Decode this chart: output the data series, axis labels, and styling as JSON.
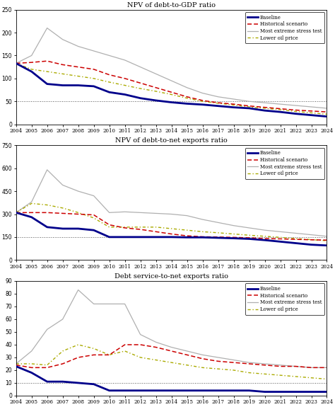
{
  "years": [
    2004,
    2005,
    2006,
    2007,
    2008,
    2009,
    2010,
    2011,
    2012,
    2013,
    2014,
    2015,
    2016,
    2017,
    2018,
    2019,
    2020,
    2021,
    2022,
    2023,
    2024
  ],
  "chart1": {
    "title": "NPV of debt-to-GDP ratio",
    "ylim": [
      0,
      250
    ],
    "yticks": [
      0,
      50,
      100,
      150,
      200,
      250
    ],
    "threshold": 50,
    "baseline": [
      133,
      115,
      88,
      85,
      85,
      83,
      70,
      65,
      57,
      52,
      48,
      45,
      43,
      40,
      37,
      35,
      30,
      27,
      23,
      20,
      17
    ],
    "historical": [
      133,
      135,
      138,
      130,
      125,
      120,
      108,
      100,
      90,
      80,
      70,
      60,
      52,
      47,
      44,
      40,
      37,
      34,
      31,
      29,
      27
    ],
    "stress": [
      133,
      150,
      210,
      185,
      170,
      160,
      150,
      140,
      125,
      110,
      95,
      80,
      68,
      60,
      55,
      50,
      47,
      44,
      41,
      38,
      35
    ],
    "lower_oil": [
      133,
      120,
      115,
      110,
      105,
      100,
      92,
      85,
      78,
      72,
      65,
      57,
      50,
      46,
      42,
      38,
      35,
      32,
      28,
      25,
      22
    ]
  },
  "chart2": {
    "title": "NPV of debt-to-net exports ratio",
    "ylim": [
      0,
      750
    ],
    "yticks": [
      0,
      150,
      300,
      450,
      600,
      750
    ],
    "threshold": 150,
    "baseline": [
      310,
      280,
      215,
      205,
      205,
      195,
      150,
      150,
      150,
      150,
      150,
      148,
      148,
      145,
      142,
      138,
      130,
      120,
      110,
      100,
      95
    ],
    "historical": [
      310,
      310,
      310,
      305,
      300,
      295,
      230,
      210,
      200,
      185,
      170,
      158,
      152,
      150,
      148,
      145,
      140,
      138,
      135,
      132,
      130
    ],
    "stress": [
      310,
      380,
      590,
      490,
      450,
      420,
      310,
      315,
      310,
      305,
      300,
      290,
      265,
      245,
      225,
      210,
      195,
      185,
      175,
      165,
      155
    ],
    "lower_oil": [
      310,
      370,
      360,
      340,
      310,
      275,
      215,
      215,
      215,
      215,
      205,
      195,
      185,
      178,
      170,
      162,
      155,
      148,
      140,
      133,
      126
    ]
  },
  "chart3": {
    "title": "Debt service-to-net exports ratio",
    "ylim": [
      0,
      90
    ],
    "yticks": [
      0,
      10,
      20,
      30,
      40,
      50,
      60,
      70,
      80,
      90
    ],
    "threshold": 10,
    "baseline": [
      23,
      18,
      11,
      11,
      10,
      9,
      4,
      4,
      4,
      4,
      4,
      4,
      4,
      4,
      4,
      4,
      3,
      3,
      3,
      3,
      3
    ],
    "historical": [
      24,
      22,
      22,
      25,
      30,
      32,
      32,
      40,
      40,
      38,
      35,
      32,
      29,
      27,
      26,
      25,
      24,
      23,
      23,
      22,
      22
    ],
    "stress": [
      25,
      35,
      52,
      60,
      83,
      72,
      72,
      72,
      48,
      42,
      38,
      35,
      32,
      30,
      28,
      26,
      25,
      24,
      23,
      22,
      22
    ],
    "lower_oil": [
      25,
      25,
      24,
      35,
      40,
      37,
      32,
      35,
      30,
      28,
      26,
      24,
      22,
      21,
      20,
      18,
      17,
      16,
      15,
      14,
      13
    ]
  },
  "colors": {
    "baseline": "#00008B",
    "historical": "#CC0000",
    "stress": "#B0B0B0",
    "lower_oil": "#AAAA00",
    "threshold": "#555555"
  },
  "legend_labels": [
    "Baseline",
    "Historical scenario",
    "Most extreme stress test",
    "Lower oil price"
  ],
  "figsize": [
    4.74,
    5.75
  ],
  "dpi": 100
}
